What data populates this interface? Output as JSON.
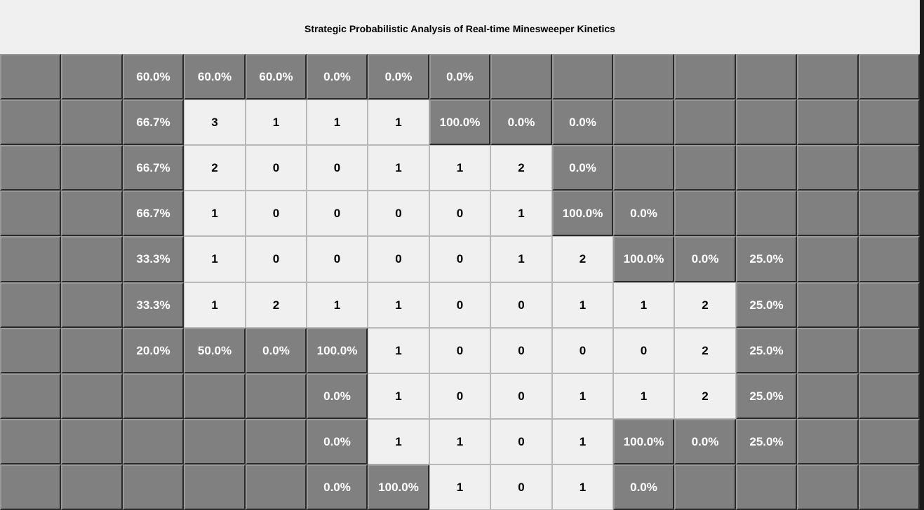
{
  "window": {
    "title": "Strategic Probabilistic Analysis of Real-time Minesweeper Kinetics"
  },
  "board": {
    "rows": [
      [
        {
          "state": "covered",
          "text": ""
        },
        {
          "state": "covered",
          "text": ""
        },
        {
          "state": "covered",
          "text": "60.0%"
        },
        {
          "state": "covered",
          "text": "60.0%"
        },
        {
          "state": "covered",
          "text": "60.0%"
        },
        {
          "state": "covered",
          "text": "0.0%"
        },
        {
          "state": "covered",
          "text": "0.0%"
        },
        {
          "state": "covered",
          "text": "0.0%"
        },
        {
          "state": "covered",
          "text": ""
        },
        {
          "state": "covered",
          "text": ""
        },
        {
          "state": "covered",
          "text": ""
        },
        {
          "state": "covered",
          "text": ""
        },
        {
          "state": "covered",
          "text": ""
        },
        {
          "state": "covered",
          "text": ""
        },
        {
          "state": "covered",
          "text": ""
        }
      ],
      [
        {
          "state": "covered",
          "text": ""
        },
        {
          "state": "covered",
          "text": ""
        },
        {
          "state": "covered",
          "text": "66.7%"
        },
        {
          "state": "revealed",
          "text": "3"
        },
        {
          "state": "revealed",
          "text": "1"
        },
        {
          "state": "revealed",
          "text": "1"
        },
        {
          "state": "revealed",
          "text": "1"
        },
        {
          "state": "covered",
          "text": "100.0%"
        },
        {
          "state": "covered",
          "text": "0.0%"
        },
        {
          "state": "covered",
          "text": "0.0%"
        },
        {
          "state": "covered",
          "text": ""
        },
        {
          "state": "covered",
          "text": ""
        },
        {
          "state": "covered",
          "text": ""
        },
        {
          "state": "covered",
          "text": ""
        },
        {
          "state": "covered",
          "text": ""
        }
      ],
      [
        {
          "state": "covered",
          "text": ""
        },
        {
          "state": "covered",
          "text": ""
        },
        {
          "state": "covered",
          "text": "66.7%"
        },
        {
          "state": "revealed",
          "text": "2"
        },
        {
          "state": "revealed",
          "text": "0"
        },
        {
          "state": "revealed",
          "text": "0"
        },
        {
          "state": "revealed",
          "text": "1"
        },
        {
          "state": "revealed",
          "text": "1"
        },
        {
          "state": "revealed",
          "text": "2"
        },
        {
          "state": "covered",
          "text": "0.0%"
        },
        {
          "state": "covered",
          "text": ""
        },
        {
          "state": "covered",
          "text": ""
        },
        {
          "state": "covered",
          "text": ""
        },
        {
          "state": "covered",
          "text": ""
        },
        {
          "state": "covered",
          "text": ""
        }
      ],
      [
        {
          "state": "covered",
          "text": ""
        },
        {
          "state": "covered",
          "text": ""
        },
        {
          "state": "covered",
          "text": "66.7%"
        },
        {
          "state": "revealed",
          "text": "1"
        },
        {
          "state": "revealed",
          "text": "0"
        },
        {
          "state": "revealed",
          "text": "0"
        },
        {
          "state": "revealed",
          "text": "0"
        },
        {
          "state": "revealed",
          "text": "0"
        },
        {
          "state": "revealed",
          "text": "1"
        },
        {
          "state": "covered",
          "text": "100.0%"
        },
        {
          "state": "covered",
          "text": "0.0%"
        },
        {
          "state": "covered",
          "text": ""
        },
        {
          "state": "covered",
          "text": ""
        },
        {
          "state": "covered",
          "text": ""
        },
        {
          "state": "covered",
          "text": ""
        }
      ],
      [
        {
          "state": "covered",
          "text": ""
        },
        {
          "state": "covered",
          "text": ""
        },
        {
          "state": "covered",
          "text": "33.3%"
        },
        {
          "state": "revealed",
          "text": "1"
        },
        {
          "state": "revealed",
          "text": "0"
        },
        {
          "state": "revealed",
          "text": "0"
        },
        {
          "state": "revealed",
          "text": "0"
        },
        {
          "state": "revealed",
          "text": "0"
        },
        {
          "state": "revealed",
          "text": "1"
        },
        {
          "state": "revealed",
          "text": "2"
        },
        {
          "state": "covered",
          "text": "100.0%"
        },
        {
          "state": "covered",
          "text": "0.0%"
        },
        {
          "state": "covered",
          "text": "25.0%"
        },
        {
          "state": "covered",
          "text": ""
        },
        {
          "state": "covered",
          "text": ""
        }
      ],
      [
        {
          "state": "covered",
          "text": ""
        },
        {
          "state": "covered",
          "text": ""
        },
        {
          "state": "covered",
          "text": "33.3%"
        },
        {
          "state": "revealed",
          "text": "1"
        },
        {
          "state": "revealed",
          "text": "2"
        },
        {
          "state": "revealed",
          "text": "1"
        },
        {
          "state": "revealed",
          "text": "1"
        },
        {
          "state": "revealed",
          "text": "0"
        },
        {
          "state": "revealed",
          "text": "0"
        },
        {
          "state": "revealed",
          "text": "1"
        },
        {
          "state": "revealed",
          "text": "1"
        },
        {
          "state": "revealed",
          "text": "2"
        },
        {
          "state": "covered",
          "text": "25.0%"
        },
        {
          "state": "covered",
          "text": ""
        },
        {
          "state": "covered",
          "text": ""
        }
      ],
      [
        {
          "state": "covered",
          "text": ""
        },
        {
          "state": "covered",
          "text": ""
        },
        {
          "state": "covered",
          "text": "20.0%"
        },
        {
          "state": "covered",
          "text": "50.0%"
        },
        {
          "state": "covered",
          "text": "0.0%"
        },
        {
          "state": "covered",
          "text": "100.0%"
        },
        {
          "state": "revealed",
          "text": "1"
        },
        {
          "state": "revealed",
          "text": "0"
        },
        {
          "state": "revealed",
          "text": "0"
        },
        {
          "state": "revealed",
          "text": "0"
        },
        {
          "state": "revealed",
          "text": "0"
        },
        {
          "state": "revealed",
          "text": "2"
        },
        {
          "state": "covered",
          "text": "25.0%"
        },
        {
          "state": "covered",
          "text": ""
        },
        {
          "state": "covered",
          "text": ""
        }
      ],
      [
        {
          "state": "covered",
          "text": ""
        },
        {
          "state": "covered",
          "text": ""
        },
        {
          "state": "covered",
          "text": ""
        },
        {
          "state": "covered",
          "text": ""
        },
        {
          "state": "covered",
          "text": ""
        },
        {
          "state": "covered",
          "text": "0.0%"
        },
        {
          "state": "revealed",
          "text": "1"
        },
        {
          "state": "revealed",
          "text": "0"
        },
        {
          "state": "revealed",
          "text": "0"
        },
        {
          "state": "revealed",
          "text": "1"
        },
        {
          "state": "revealed",
          "text": "1"
        },
        {
          "state": "revealed",
          "text": "2"
        },
        {
          "state": "covered",
          "text": "25.0%"
        },
        {
          "state": "covered",
          "text": ""
        },
        {
          "state": "covered",
          "text": ""
        }
      ],
      [
        {
          "state": "covered",
          "text": ""
        },
        {
          "state": "covered",
          "text": ""
        },
        {
          "state": "covered",
          "text": ""
        },
        {
          "state": "covered",
          "text": ""
        },
        {
          "state": "covered",
          "text": ""
        },
        {
          "state": "covered",
          "text": "0.0%"
        },
        {
          "state": "revealed",
          "text": "1"
        },
        {
          "state": "revealed",
          "text": "1"
        },
        {
          "state": "revealed",
          "text": "0"
        },
        {
          "state": "revealed",
          "text": "1"
        },
        {
          "state": "covered",
          "text": "100.0%"
        },
        {
          "state": "covered",
          "text": "0.0%"
        },
        {
          "state": "covered",
          "text": "25.0%"
        },
        {
          "state": "covered",
          "text": ""
        },
        {
          "state": "covered",
          "text": ""
        }
      ],
      [
        {
          "state": "covered",
          "text": ""
        },
        {
          "state": "covered",
          "text": ""
        },
        {
          "state": "covered",
          "text": ""
        },
        {
          "state": "covered",
          "text": ""
        },
        {
          "state": "covered",
          "text": ""
        },
        {
          "state": "covered",
          "text": "0.0%"
        },
        {
          "state": "covered",
          "text": "100.0%"
        },
        {
          "state": "revealed",
          "text": "1"
        },
        {
          "state": "revealed",
          "text": "0"
        },
        {
          "state": "revealed",
          "text": "1"
        },
        {
          "state": "covered",
          "text": "0.0%"
        },
        {
          "state": "covered",
          "text": ""
        },
        {
          "state": "covered",
          "text": ""
        },
        {
          "state": "covered",
          "text": ""
        },
        {
          "state": "covered",
          "text": ""
        }
      ]
    ]
  }
}
